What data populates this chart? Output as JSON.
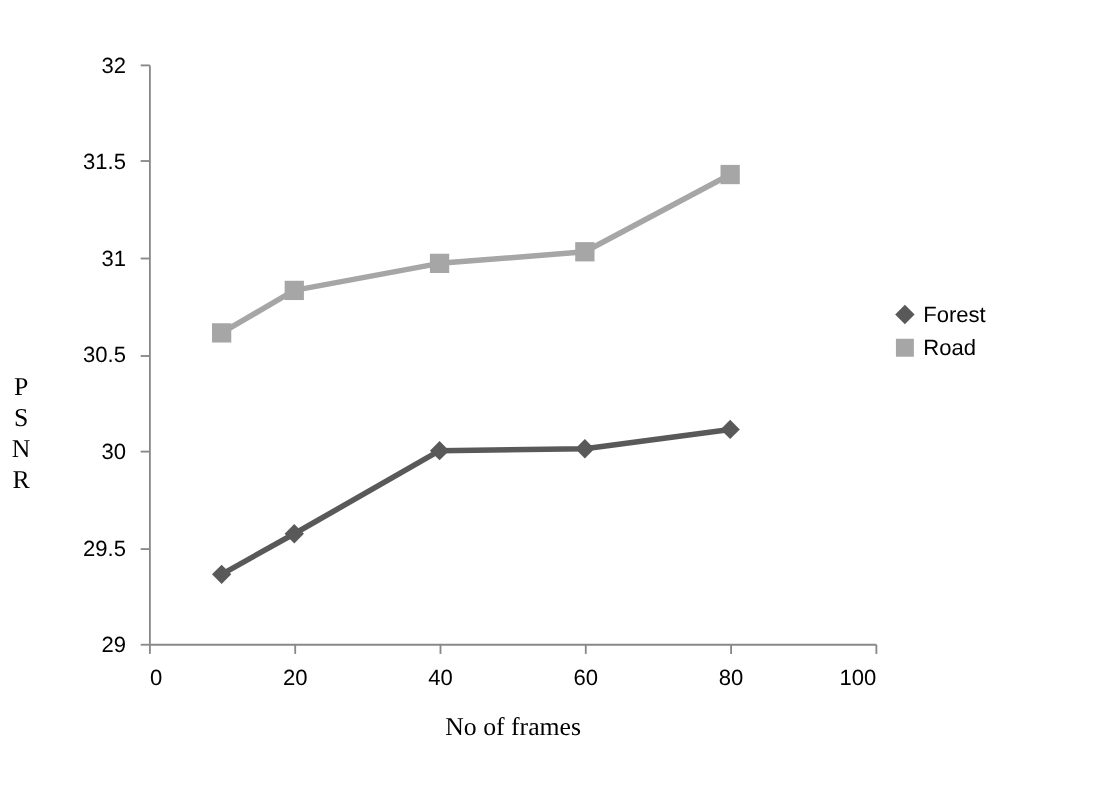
{
  "chart_data": {
    "type": "line",
    "xlabel": "No of frames",
    "ylabel": "PSNR",
    "x": [
      10,
      20,
      40,
      60,
      80
    ],
    "series": [
      {
        "name": "Forest",
        "color": "#595959",
        "marker": "diamond",
        "values": [
          29.36,
          29.57,
          30.0,
          30.01,
          30.11
        ]
      },
      {
        "name": "Road",
        "color": "#a6a6a6",
        "marker": "square",
        "values": [
          30.61,
          30.83,
          30.97,
          31.03,
          31.43
        ]
      }
    ],
    "xlim": [
      0,
      100
    ],
    "xticks": [
      0,
      20,
      40,
      60,
      80,
      100
    ],
    "ylim": [
      29,
      32
    ],
    "yticks": [
      29,
      29.5,
      30,
      30.5,
      31,
      31.5,
      32
    ],
    "grid": false,
    "legend": "right",
    "line_style": "solid"
  }
}
